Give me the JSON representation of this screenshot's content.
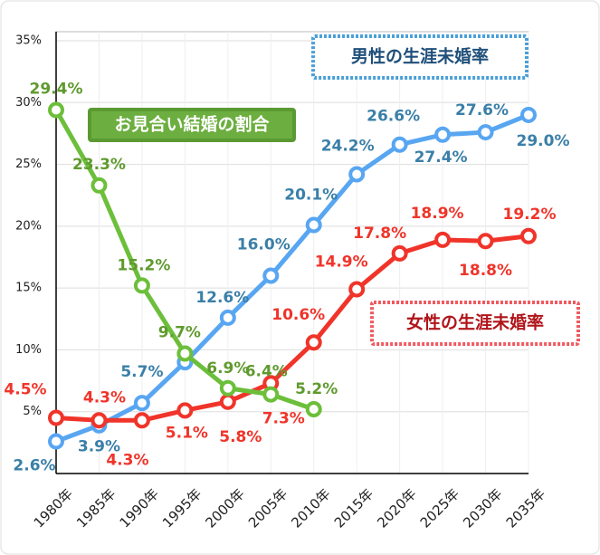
{
  "chart_data": {
    "type": "line",
    "categories": [
      "1980年",
      "1985年",
      "1990年",
      "1995年",
      "2000年",
      "2005年",
      "2010年",
      "2015年",
      "2020年",
      "2025年",
      "2030年",
      "2035年"
    ],
    "ylim": [
      0,
      35
    ],
    "yticks": [
      {
        "value": 5,
        "label": "5%"
      },
      {
        "value": 10,
        "label": "10%"
      },
      {
        "value": 15,
        "label": "15%"
      },
      {
        "value": 20,
        "label": "20%"
      },
      {
        "value": 25,
        "label": "25%"
      },
      {
        "value": 30,
        "label": "30%"
      },
      {
        "value": 35,
        "label": "35%"
      }
    ],
    "grid": true,
    "series": [
      {
        "name": "男性の生涯未婚率",
        "color": "#58a6f2",
        "values": [
          2.6,
          3.9,
          5.7,
          9.0,
          12.6,
          16.0,
          20.1,
          24.2,
          26.6,
          27.4,
          27.6,
          29.0
        ],
        "value_labels": [
          "2.6%",
          "3.9%",
          "5.7%",
          null,
          "12.6%",
          "16.0%",
          "20.1%",
          "24.2%",
          "26.6%",
          "27.4%",
          "27.6%",
          "29.0%"
        ]
      },
      {
        "name": "女性の生涯未婚率",
        "color": "#f0342a",
        "values": [
          4.5,
          4.3,
          4.3,
          5.1,
          5.8,
          7.3,
          10.6,
          14.9,
          17.8,
          18.9,
          18.8,
          19.2
        ],
        "value_labels": [
          "4.5%",
          "4.3%",
          "4.3%",
          "5.1%",
          "5.8%",
          "7.3%",
          "10.6%",
          "14.9%",
          "17.8%",
          "18.9%",
          "18.8%",
          "19.2%"
        ]
      },
      {
        "name": "お見合い結婚の割合",
        "color": "#6cbf3a",
        "values": [
          29.4,
          23.3,
          15.2,
          9.7,
          6.9,
          6.4,
          5.2,
          null,
          null,
          null,
          null,
          null
        ],
        "value_labels": [
          "29.4%",
          "23.3%",
          "15.2%",
          "9.7%",
          "6.9%",
          "6.4%",
          "5.2%",
          null,
          null,
          null,
          null,
          null
        ]
      }
    ]
  }
}
